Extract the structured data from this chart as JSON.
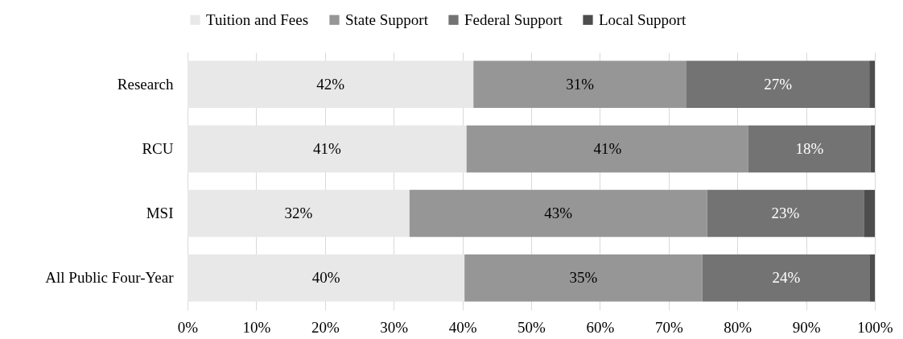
{
  "chart_data": {
    "type": "bar",
    "orientation": "horizontal",
    "stacked": true,
    "categories": [
      "Research",
      "RCU",
      "MSI",
      "All Public Four-Year"
    ],
    "series": [
      {
        "name": "Tuition and Fees",
        "color": "#e8e8e8",
        "values": [
          41.6,
          40.6,
          32.3,
          40.3
        ],
        "value_labels": [
          "42%",
          "41%",
          "32%",
          "40%"
        ]
      },
      {
        "name": "State Support",
        "color": "#969696",
        "values": [
          31.0,
          41.0,
          43.3,
          34.6
        ],
        "value_labels": [
          "31%",
          "41%",
          "43%",
          "35%"
        ]
      },
      {
        "name": "Federal Support",
        "color": "#737373",
        "values": [
          26.6,
          17.8,
          22.8,
          24.4
        ],
        "value_labels": [
          "27%",
          "18%",
          "23%",
          "24%"
        ]
      },
      {
        "name": "Local Support",
        "color": "#4d4d4d",
        "values": [
          0.8,
          0.6,
          1.6,
          0.7
        ]
      }
    ],
    "xlim": [
      0,
      100
    ],
    "xticks": [
      {
        "value": 0,
        "label": "0%"
      },
      {
        "value": 10,
        "label": "10%"
      },
      {
        "value": 20,
        "label": "20%"
      },
      {
        "value": 30,
        "label": "30%"
      },
      {
        "value": 40,
        "label": "40%"
      },
      {
        "value": 50,
        "label": "50%"
      },
      {
        "value": 60,
        "label": "60%"
      },
      {
        "value": 70,
        "label": "70%"
      },
      {
        "value": 80,
        "label": "80%"
      },
      {
        "value": 90,
        "label": "90%"
      },
      {
        "value": 100,
        "label": "100%"
      }
    ],
    "grid": "x",
    "legend": "top"
  }
}
